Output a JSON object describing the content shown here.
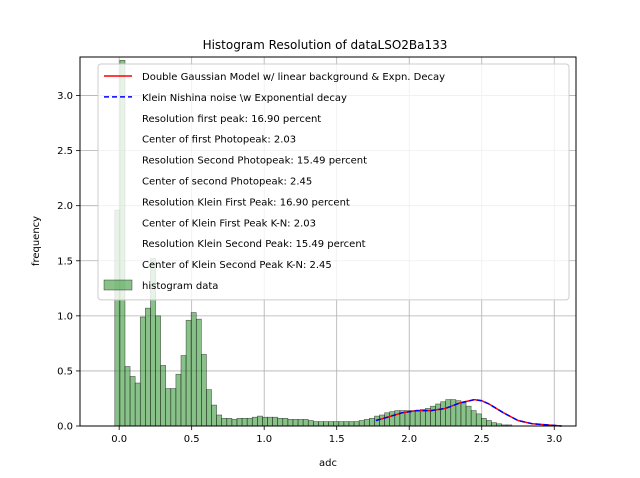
{
  "chart_data": {
    "type": "bar",
    "title": "Histogram Resolution of dataLSO2Ba133",
    "xlabel": "adc",
    "ylabel": "frequency",
    "xlim": [
      -0.27,
      3.15
    ],
    "ylim": [
      0,
      3.35
    ],
    "xticks": [
      0.0,
      0.5,
      1.0,
      1.5,
      2.0,
      2.5,
      3.0
    ],
    "yticks": [
      0.0,
      0.5,
      1.0,
      1.5,
      2.0,
      2.5,
      3.0
    ],
    "grid": true,
    "legend_position": "top-right",
    "histogram": {
      "name": "histogram data",
      "color": "#3a9a3a",
      "bin_width": 0.0351,
      "bin_start": -0.03,
      "counts": [
        1.96,
        3.32,
        0.54,
        0.45,
        0.39,
        0.99,
        1.07,
        1.52,
        1.0,
        0.55,
        0.34,
        0.34,
        0.47,
        0.64,
        0.96,
        1.03,
        0.97,
        0.65,
        0.33,
        0.19,
        0.1,
        0.07,
        0.07,
        0.06,
        0.07,
        0.07,
        0.07,
        0.08,
        0.09,
        0.08,
        0.08,
        0.08,
        0.07,
        0.07,
        0.06,
        0.06,
        0.06,
        0.06,
        0.05,
        0.04,
        0.04,
        0.04,
        0.04,
        0.04,
        0.04,
        0.04,
        0.04,
        0.04,
        0.05,
        0.06,
        0.07,
        0.09,
        0.1,
        0.12,
        0.13,
        0.14,
        0.14,
        0.14,
        0.14,
        0.14,
        0.15,
        0.16,
        0.18,
        0.2,
        0.22,
        0.24,
        0.24,
        0.23,
        0.21,
        0.18,
        0.14,
        0.11,
        0.07,
        0.05,
        0.03,
        0.02,
        0.01,
        0.01,
        0.0,
        0.0,
        0.0,
        0.0,
        0.0,
        0.0,
        0.0,
        0.0,
        0.0,
        0.0
      ]
    },
    "series": [
      {
        "name": "Double Gaussian Model w/ linear background & Expn. Decay",
        "color": "#ff0000",
        "dash": "solid",
        "x": [
          1.77,
          1.85,
          1.95,
          2.05,
          2.15,
          2.25,
          2.35,
          2.45,
          2.5,
          2.55,
          2.65,
          2.75,
          2.85,
          2.95,
          3.05
        ],
        "y": [
          0.05,
          0.08,
          0.12,
          0.14,
          0.14,
          0.16,
          0.21,
          0.24,
          0.23,
          0.2,
          0.12,
          0.05,
          0.02,
          0.01,
          0.0
        ]
      },
      {
        "name": "Klein Nishina noise \\w Exponential decay",
        "color": "#0000ff",
        "dash": "dashed",
        "x": [
          1.77,
          1.85,
          1.95,
          2.05,
          2.15,
          2.25,
          2.35,
          2.45,
          2.5,
          2.55,
          2.65,
          2.75,
          2.85,
          2.95,
          3.05
        ],
        "y": [
          0.05,
          0.08,
          0.12,
          0.14,
          0.14,
          0.16,
          0.21,
          0.24,
          0.23,
          0.2,
          0.12,
          0.05,
          0.02,
          0.01,
          0.0
        ]
      }
    ],
    "legend_entries": [
      {
        "label": "Double Gaussian Model w/ linear background & Expn. Decay",
        "marker": "line",
        "color": "#ff0000",
        "dash": "solid"
      },
      {
        "label": "Klein Nishina noise \\w Exponential decay",
        "marker": "line",
        "color": "#0000ff",
        "dash": "dashed"
      },
      {
        "label": "Resolution first peak: 16.90 percent",
        "marker": "none"
      },
      {
        "label": "Center of first Photopeak: 2.03",
        "marker": "none"
      },
      {
        "label": "Resolution Second Photopeak: 15.49 percent",
        "marker": "none"
      },
      {
        "label": "Center of second Photopeak: 2.45",
        "marker": "none"
      },
      {
        "label": "Resolution Klein First Peak: 16.90 percent",
        "marker": "none"
      },
      {
        "label": "Center of Klein First Peak K-N: 2.03",
        "marker": "none"
      },
      {
        "label": "Resolution Klein Second Peak: 15.49 percent",
        "marker": "none"
      },
      {
        "label": "Center of Klein Second Peak K-N: 2.45",
        "marker": "none"
      },
      {
        "label": "histogram data",
        "marker": "patch",
        "color": "#3a9a3a"
      }
    ]
  }
}
